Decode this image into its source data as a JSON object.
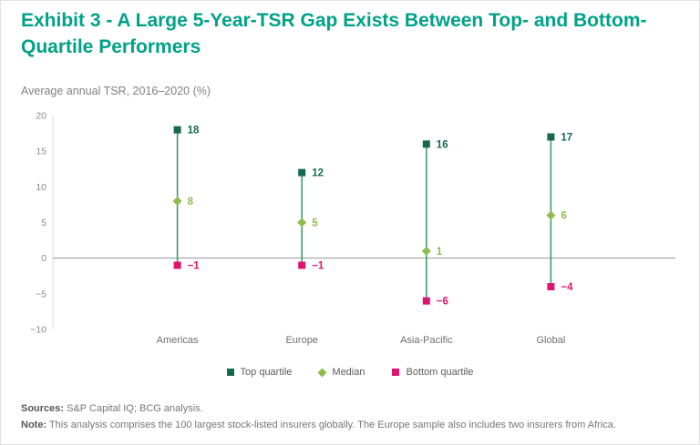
{
  "title": "Exhibit 3 - A Large 5-Year-TSR Gap Exists Between Top- and Bottom-Quartile Performers",
  "subtitle": "Average annual TSR, 2016–2020 (%)",
  "chart_data": {
    "type": "scatter",
    "title": "Average annual TSR, 2016–2020 (%)",
    "categories": [
      "Americas",
      "Europe",
      "Asia-Pacific",
      "Global"
    ],
    "series": [
      {
        "name": "Top quartile",
        "marker": "square",
        "color": "#17694e",
        "values": [
          18,
          12,
          16,
          17
        ]
      },
      {
        "name": "Median",
        "marker": "diamond",
        "color": "#8dbc4f",
        "values": [
          8,
          5,
          1,
          6
        ]
      },
      {
        "name": "Bottom quartile",
        "marker": "square",
        "color": "#e0136f",
        "values": [
          -1,
          -1,
          -6,
          -4
        ]
      }
    ],
    "ylim": [
      -10,
      20
    ],
    "yticks": [
      20,
      15,
      10,
      5,
      0,
      -5,
      -10
    ],
    "grid": false,
    "legend_position": "bottom",
    "connector_line_color": "#2e9669",
    "zero_line_color": "#969696",
    "axis_text_color": "#8a8a8a",
    "category_text_color": "#6e6e6e"
  },
  "footer": {
    "sources_label": "Sources:",
    "sources_text": " S&P Capital IQ; BCG analysis.",
    "note_label": "Note:",
    "note_text": " This analysis comprises the 100 largest stock-listed insurers globally. The Europe sample also includes two insurers from Africa."
  },
  "colors": {
    "title": "#00a287",
    "top_quartile": "#17694e",
    "median": "#8dbc4f",
    "bottom_quartile": "#e0136f"
  }
}
